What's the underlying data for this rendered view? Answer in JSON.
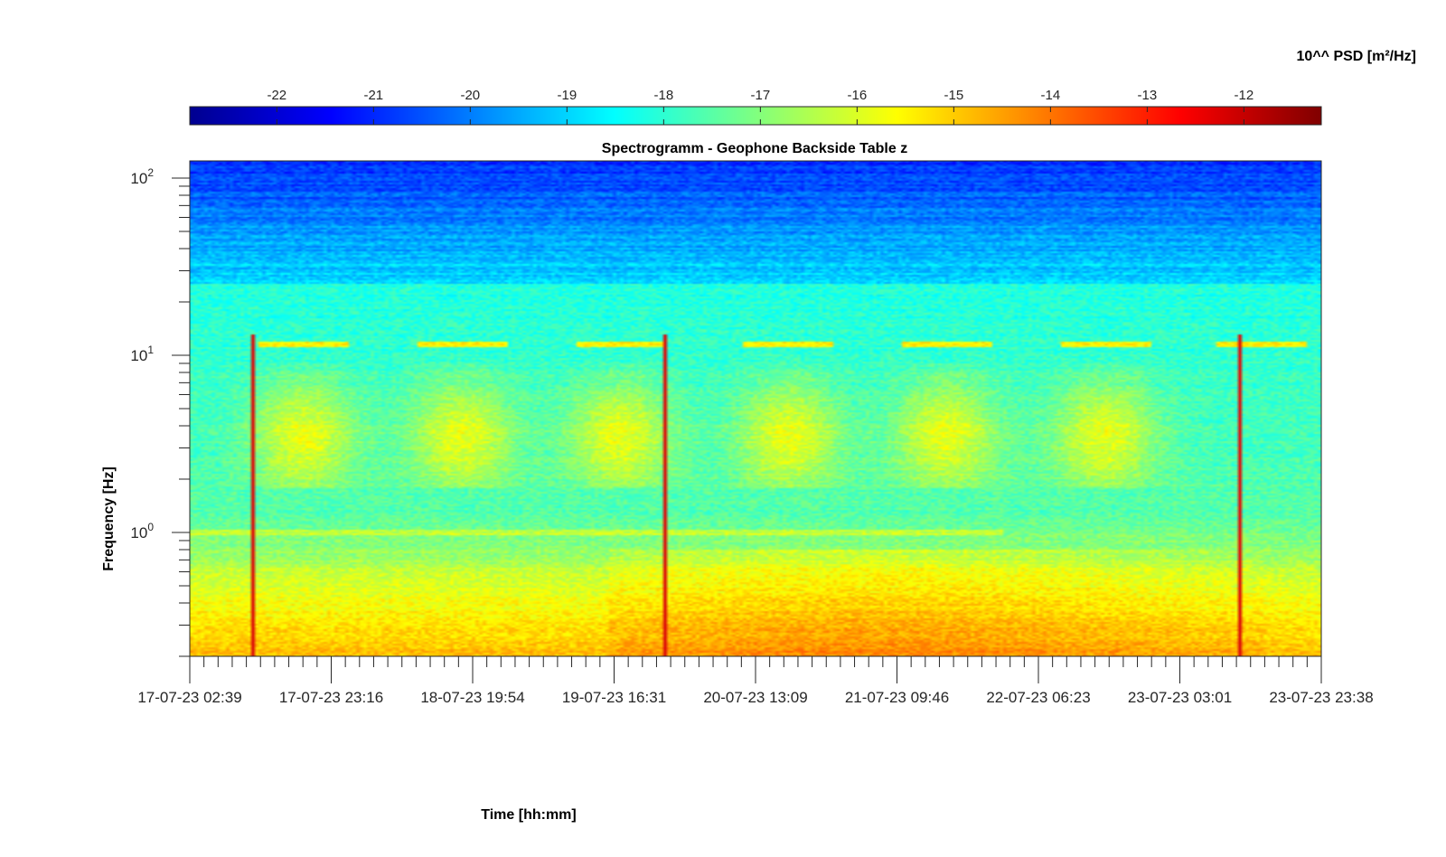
{
  "chart_data": {
    "type": "heatmap",
    "title": "Spectrogramm - Geophone Backside Table z",
    "xlabel": "Time [hh:mm]",
    "ylabel": "Frequency [Hz]",
    "x_tick_labels": [
      "17-07-23 02:39",
      "17-07-23 23:16",
      "18-07-23 19:54",
      "19-07-23 16:31",
      "20-07-23 13:09",
      "21-07-23 09:46",
      "22-07-23 06:23",
      "23-07-23 03:01",
      "23-07-23 23:38"
    ],
    "xlim": [
      "17-07-23 02:39",
      "23-07-23 23:38"
    ],
    "y_scale": "log",
    "ylim": [
      0.2,
      125
    ],
    "y_ticks": [
      {
        "base": "10",
        "exp": "0",
        "value": 1
      },
      {
        "base": "10",
        "exp": "1",
        "value": 10
      },
      {
        "base": "10",
        "exp": "2",
        "value": 100
      }
    ],
    "colorbar": {
      "label": "10^^ PSD [m²/Hz]",
      "location": "top",
      "colormap": "jet",
      "range": [
        -22.9,
        -11.2
      ],
      "ticks": [
        -22,
        -21,
        -20,
        -19,
        -18,
        -17,
        -16,
        -15,
        -14,
        -13,
        -12
      ]
    },
    "features": {
      "narrowband_line_hz": 1.0,
      "intermittent_line_hz": 11.5,
      "high_band_cutoff_hz": 25,
      "daytime_activity_band_hz": [
        2,
        8
      ],
      "low_frequency_high_psd_hz": [
        0.2,
        0.8
      ]
    }
  }
}
